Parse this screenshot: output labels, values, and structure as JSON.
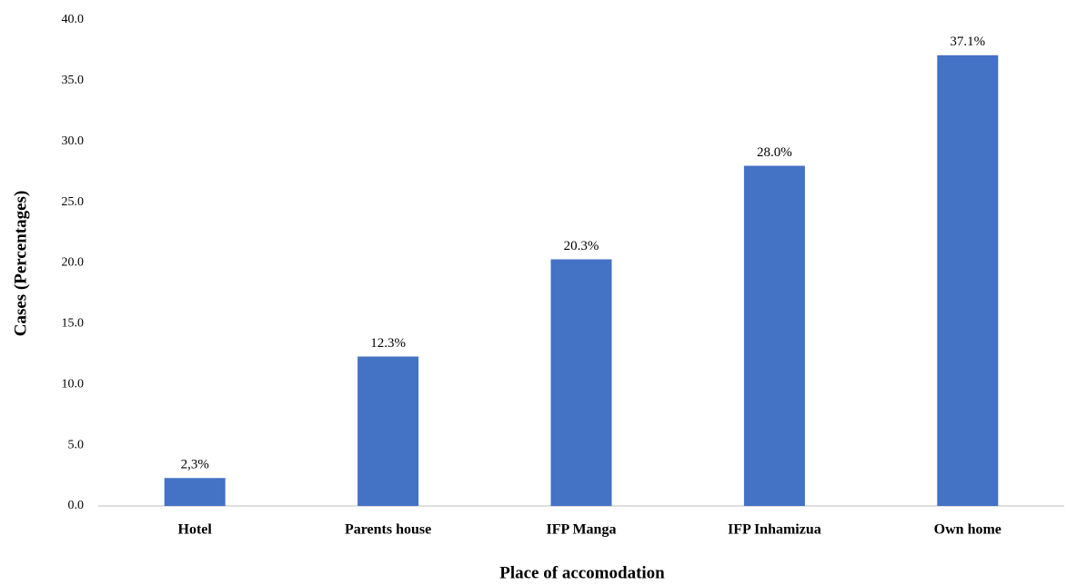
{
  "chart_data": {
    "type": "bar",
    "xlabel": "Place of accomodation",
    "ylabel": "Cases (Percentages)",
    "categories": [
      "Hotel",
      "Parents house",
      "IFP Manga",
      "IFP Inhamizua",
      "Own home"
    ],
    "values": [
      2.3,
      12.3,
      20.3,
      28.0,
      37.1
    ],
    "value_labels": [
      "2,3%",
      "12.3%",
      "20.3%",
      "28.0%",
      "37.1%"
    ],
    "color": "#4472c4",
    "ylim": [
      0,
      40
    ],
    "yticks": [
      {
        "value": 0,
        "label": "0.0"
      },
      {
        "value": 5,
        "label": "5.0"
      },
      {
        "value": 10,
        "label": "10.0"
      },
      {
        "value": 15,
        "label": "15.0"
      },
      {
        "value": 20,
        "label": "20.0"
      },
      {
        "value": 25,
        "label": "25.0"
      },
      {
        "value": 30,
        "label": "30.0"
      },
      {
        "value": 35,
        "label": "35.0"
      },
      {
        "value": 40,
        "label": "40.0"
      }
    ],
    "grid": false
  }
}
